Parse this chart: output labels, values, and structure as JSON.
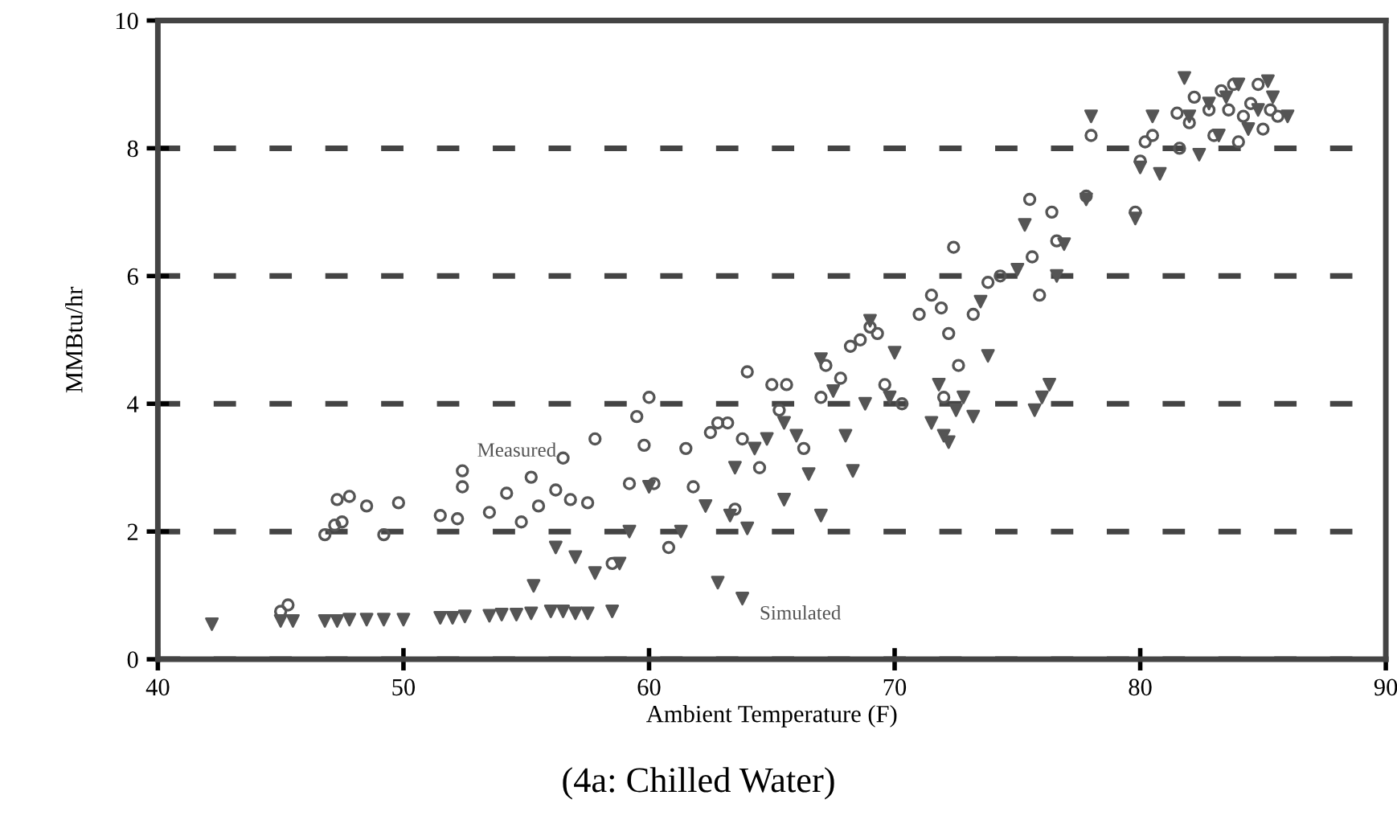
{
  "chart_data": {
    "type": "scatter",
    "title": "(4a: Chilled Water)",
    "xlabel": "Ambient Temperature (F)",
    "ylabel": "MMBtu/hr",
    "xlim": [
      40,
      90
    ],
    "xticks": [
      40,
      50,
      60,
      70,
      80,
      90
    ],
    "ylim": [
      0,
      10
    ],
    "yticks": [
      0,
      2,
      4,
      6,
      8,
      10
    ],
    "grid": "y",
    "line_style": "dashed",
    "series": [
      {
        "name": "Measured",
        "color": "#555555",
        "marker": "circle",
        "x": [
          45,
          45.3,
          46.8,
          47.2,
          47.3,
          47.8,
          47.5,
          48.5,
          49.2,
          49.8,
          51.5,
          52.2,
          52.4,
          52.4,
          53.5,
          54.2,
          54.8,
          55.2,
          55.5,
          56.2,
          56.5,
          56.8,
          57.5,
          57.8,
          58.5,
          59.2,
          59.5,
          59.8,
          60,
          60.2,
          60.8,
          61.5,
          61.8,
          62.5,
          62.8,
          63.2,
          63.5,
          63.8,
          64,
          64.5,
          65,
          65.3,
          65.6,
          66.3,
          67,
          67.2,
          67.8,
          68.2,
          68.6,
          69,
          69.3,
          69.6,
          70.3,
          71,
          71.5,
          71.9,
          72,
          72.2,
          72.4,
          72.6,
          73.2,
          73.8,
          74.3,
          75.5,
          75.6,
          75.9,
          76.4,
          76.6,
          77.8,
          78,
          79.8,
          80,
          80.2,
          80.5,
          81.5,
          82,
          82.2,
          82.8,
          83,
          83.3,
          83.6,
          83.8,
          84.2,
          84.5,
          84.8,
          85,
          85.3,
          85.6,
          81.6,
          84
        ],
        "values": [
          0.75,
          0.85,
          1.95,
          2.1,
          2.5,
          2.55,
          2.15,
          2.4,
          1.95,
          2.45,
          2.25,
          2.2,
          2.7,
          2.95,
          2.3,
          2.6,
          2.15,
          2.85,
          2.4,
          2.65,
          3.15,
          2.5,
          2.45,
          3.45,
          1.5,
          2.75,
          3.8,
          3.35,
          4.1,
          2.75,
          1.75,
          3.3,
          2.7,
          3.55,
          3.7,
          3.7,
          2.35,
          3.45,
          4.5,
          3.0,
          4.3,
          3.9,
          4.3,
          3.3,
          4.1,
          4.6,
          4.4,
          4.9,
          5.0,
          5.2,
          5.1,
          4.3,
          4.0,
          5.4,
          5.7,
          5.5,
          4.1,
          5.1,
          6.45,
          4.6,
          5.4,
          5.9,
          6.0,
          7.2,
          6.3,
          5.7,
          7.0,
          6.55,
          7.25,
          8.2,
          7.0,
          7.8,
          8.1,
          8.2,
          8.55,
          8.4,
          8.8,
          8.6,
          8.2,
          8.9,
          8.6,
          9.0,
          8.5,
          8.7,
          9.0,
          8.3,
          8.6,
          8.5,
          8.0,
          8.1
        ]
      },
      {
        "name": "Simulated",
        "color": "#555555",
        "marker": "triangle",
        "x": [
          42.2,
          45,
          45.5,
          46.8,
          47.3,
          47.8,
          48.5,
          49.2,
          50,
          51.5,
          52,
          52.5,
          53.5,
          54,
          54.6,
          55.2,
          55.3,
          56,
          56.5,
          57,
          57.5,
          58.5,
          56.2,
          57,
          57.8,
          58.8,
          59.2,
          60,
          61.3,
          62.3,
          62.8,
          63.3,
          63.8,
          63.5,
          64,
          64.3,
          64.8,
          65.5,
          65.5,
          66,
          66.5,
          67,
          67,
          67.5,
          68,
          68.3,
          68.8,
          69,
          69.8,
          70,
          71.5,
          71.8,
          72,
          72.2,
          72.5,
          72.8,
          73.2,
          73.5,
          73.8,
          75,
          75.3,
          75.7,
          76,
          76.3,
          76.6,
          76.9,
          77.8,
          78,
          79.8,
          80,
          80.5,
          80.8,
          81.8,
          82,
          82.4,
          82.8,
          83.2,
          83.5,
          84,
          84.4,
          84.8,
          85.2,
          85.4,
          86
        ],
        "values": [
          0.55,
          0.6,
          0.6,
          0.6,
          0.6,
          0.62,
          0.62,
          0.62,
          0.62,
          0.65,
          0.65,
          0.67,
          0.68,
          0.7,
          0.7,
          0.72,
          1.15,
          0.75,
          0.75,
          0.72,
          0.72,
          0.75,
          1.75,
          1.6,
          1.35,
          1.5,
          2.0,
          2.7,
          2.0,
          2.4,
          1.2,
          2.25,
          0.95,
          3.0,
          2.05,
          3.3,
          3.45,
          3.7,
          2.5,
          3.5,
          2.9,
          2.25,
          4.7,
          4.2,
          3.5,
          2.95,
          4.0,
          5.3,
          4.1,
          4.8,
          3.7,
          4.3,
          3.5,
          3.4,
          3.9,
          4.1,
          3.8,
          5.6,
          4.75,
          6.1,
          6.8,
          3.9,
          4.1,
          4.3,
          6.0,
          6.5,
          7.2,
          8.5,
          6.9,
          7.7,
          8.5,
          7.6,
          9.1,
          8.5,
          7.9,
          8.7,
          8.2,
          8.8,
          9.0,
          8.3,
          8.6,
          9.05,
          8.8,
          8.5
        ]
      }
    ]
  }
}
